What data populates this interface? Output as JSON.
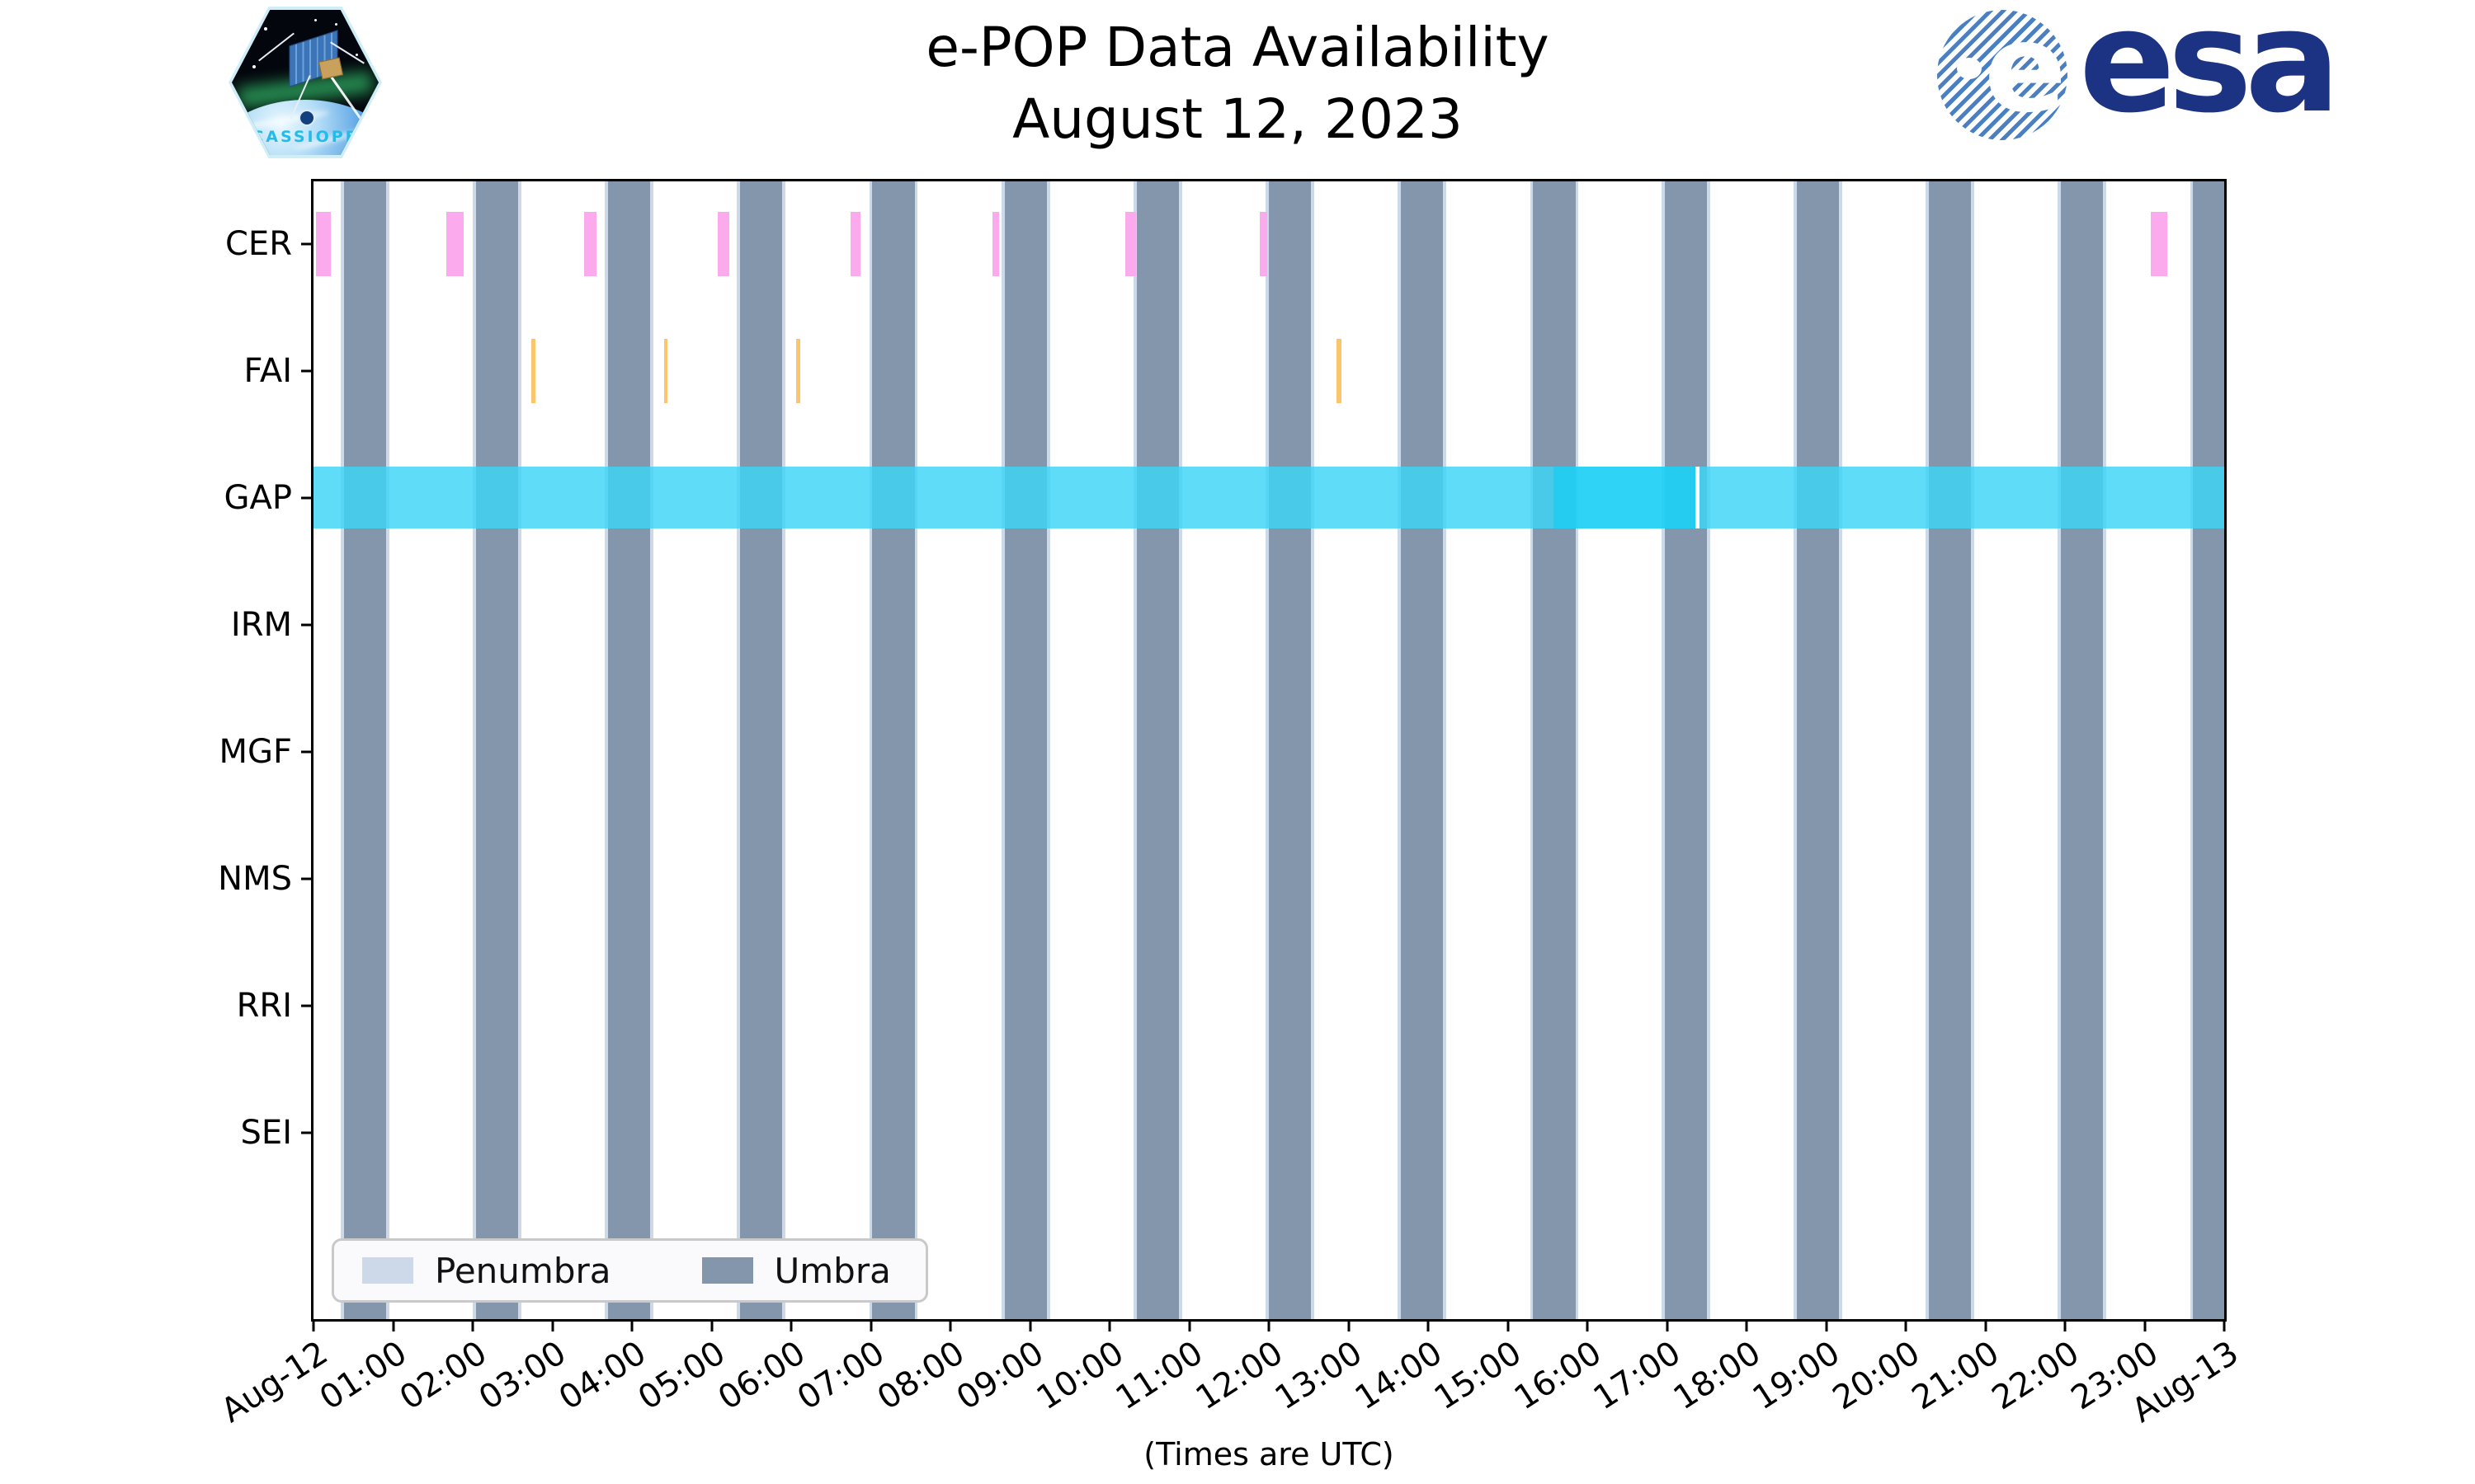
{
  "header": {
    "title_line1": "e-POP Data Availability",
    "title_line2": "August 12, 2023",
    "cassiope_label": "CASSIOPE",
    "esa_label": "esa"
  },
  "legend": {
    "items": [
      {
        "label": "Penumbra",
        "color": "#cdd9e8"
      },
      {
        "label": "Umbra",
        "color": "#8496ab"
      }
    ]
  },
  "chart_data": {
    "type": "timeline",
    "title": "e-POP Data Availability August 12, 2023",
    "x_axis": {
      "label": "(Times are UTC)",
      "start_hour": 0,
      "end_hour": 24,
      "tick_labels": [
        "Aug-12",
        "01:00",
        "02:00",
        "03:00",
        "04:00",
        "05:00",
        "06:00",
        "07:00",
        "08:00",
        "09:00",
        "10:00",
        "11:00",
        "12:00",
        "13:00",
        "14:00",
        "15:00",
        "16:00",
        "17:00",
        "18:00",
        "19:00",
        "20:00",
        "21:00",
        "22:00",
        "23:00",
        "Aug-13"
      ]
    },
    "rows": [
      "CER",
      "FAI",
      "GAP",
      "IRM",
      "MGF",
      "NMS",
      "RRI",
      "SEI"
    ],
    "eclipse": {
      "umbra_color": "#8496ab",
      "penumbra_color": "#cdd9e8",
      "penumbra_edge_hours": 0.04,
      "umbra_intervals": [
        [
          0.38,
          0.91
        ],
        [
          2.04,
          2.57
        ],
        [
          3.7,
          4.23
        ],
        [
          5.36,
          5.89
        ],
        [
          7.02,
          7.55
        ],
        [
          8.68,
          9.21
        ],
        [
          10.34,
          10.87
        ],
        [
          12.0,
          12.53
        ],
        [
          13.66,
          14.19
        ],
        [
          15.32,
          15.85
        ],
        [
          16.97,
          17.5
        ],
        [
          18.63,
          19.16
        ],
        [
          20.29,
          20.82
        ],
        [
          21.95,
          22.48
        ],
        [
          23.61,
          24.0
        ]
      ]
    },
    "series": [
      {
        "name": "CER",
        "color": "#fcaaee",
        "intervals": [
          [
            0.03,
            0.22
          ],
          [
            1.67,
            1.89
          ],
          [
            3.4,
            3.55
          ],
          [
            5.08,
            5.22
          ],
          [
            6.75,
            6.87
          ],
          [
            8.53,
            8.61
          ],
          [
            10.2,
            10.33
          ],
          [
            11.89,
            11.98
          ],
          [
            23.08,
            23.29
          ]
        ]
      },
      {
        "name": "FAI",
        "color": "#fac56c",
        "intervals": [
          [
            2.74,
            2.79
          ],
          [
            4.4,
            4.45
          ],
          [
            6.06,
            6.11
          ],
          [
            12.85,
            12.91
          ]
        ]
      },
      {
        "name": "GAP",
        "color_normal": "rgba(60,213,246,0.82)",
        "color_dark": "rgba(30,208,244,0.93)",
        "segments": [
          {
            "start": 0.0,
            "end": 15.57,
            "shade": "normal"
          },
          {
            "start": 15.57,
            "end": 17.36,
            "shade": "dark"
          },
          {
            "start": 17.41,
            "end": 24.0,
            "shade": "normal"
          }
        ]
      },
      {
        "name": "IRM",
        "intervals": []
      },
      {
        "name": "MGF",
        "intervals": []
      },
      {
        "name": "NMS",
        "intervals": []
      },
      {
        "name": "RRI",
        "intervals": []
      },
      {
        "name": "SEI",
        "intervals": []
      }
    ]
  }
}
